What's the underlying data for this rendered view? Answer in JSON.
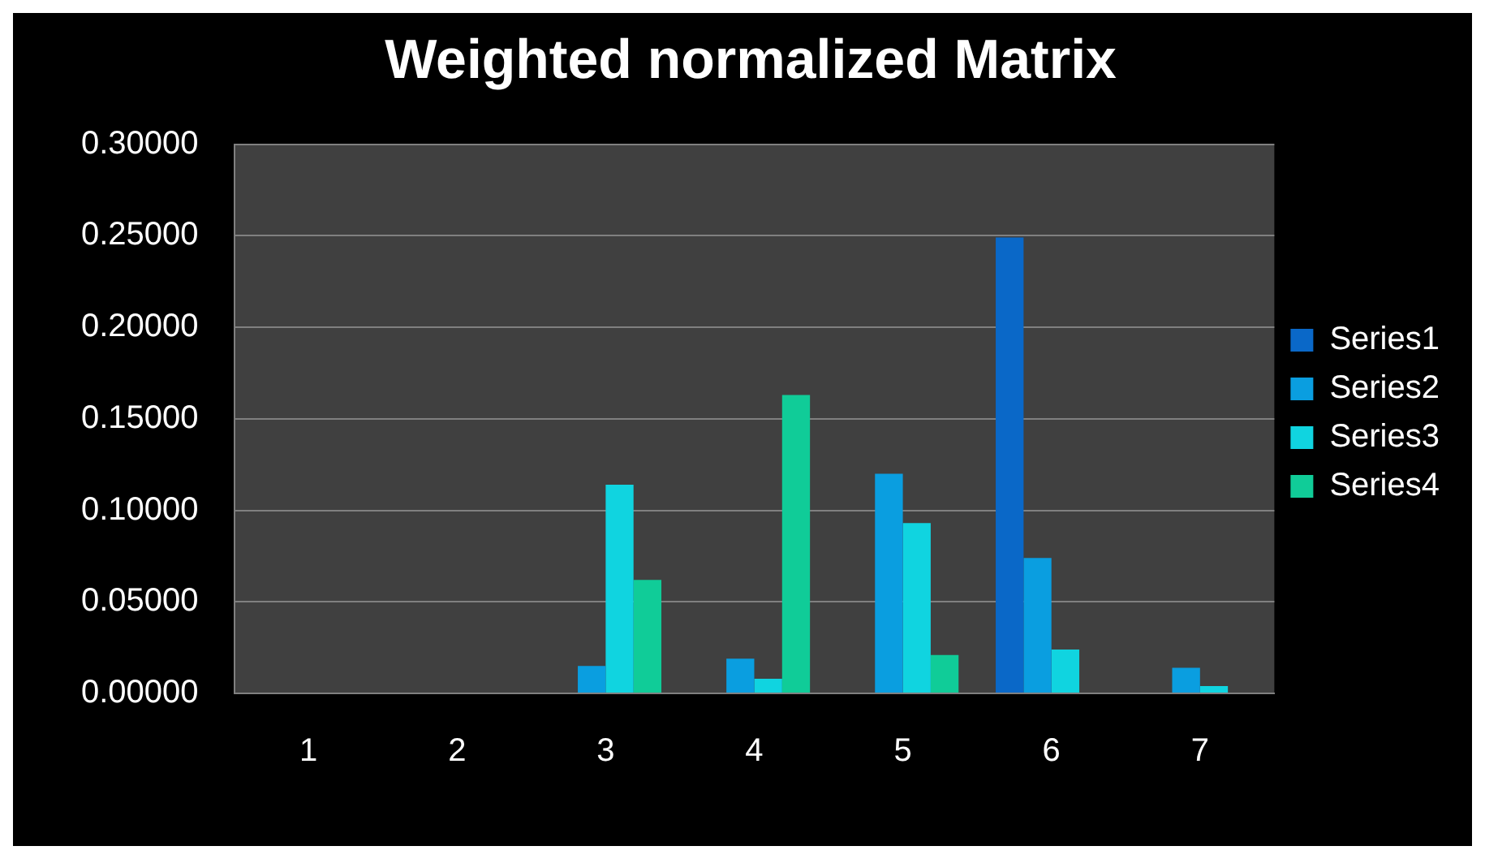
{
  "chart_data": {
    "type": "bar",
    "title": "Weighted normalized Matrix",
    "categories": [
      "1",
      "2",
      "3",
      "4",
      "5",
      "6",
      "7"
    ],
    "series": [
      {
        "name": "Series1",
        "color": "#0a68c8",
        "values": [
          0,
          0,
          0,
          0,
          0,
          0.249,
          0
        ]
      },
      {
        "name": "Series2",
        "color": "#0a9ee0",
        "values": [
          0,
          0,
          0.015,
          0.019,
          0.12,
          0.074,
          0.014
        ]
      },
      {
        "name": "Series3",
        "color": "#10d4e0",
        "values": [
          0,
          0,
          0.114,
          0.008,
          0.093,
          0.024,
          0.004
        ]
      },
      {
        "name": "Series4",
        "color": "#10cc98",
        "values": [
          0,
          0,
          0.062,
          0.163,
          0.021,
          0,
          0
        ]
      }
    ],
    "ylim": [
      0,
      0.3
    ],
    "yticks": [
      {
        "value": 0,
        "label": "0.00000"
      },
      {
        "value": 0.05,
        "label": "0.05000"
      },
      {
        "value": 0.1,
        "label": "0.10000"
      },
      {
        "value": 0.15,
        "label": "0.15000"
      },
      {
        "value": 0.2,
        "label": "0.20000"
      },
      {
        "value": 0.25,
        "label": "0.25000"
      },
      {
        "value": 0.3,
        "label": "0.30000"
      }
    ],
    "grid": "y",
    "legend": "right"
  }
}
